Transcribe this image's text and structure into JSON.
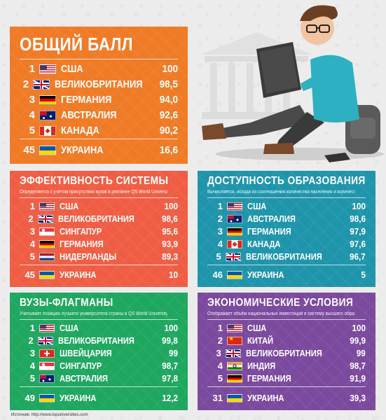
{
  "colors": {
    "orange": "#f07b26",
    "red": "#ef5e44",
    "teal": "#1f95ac",
    "green": "#1fa760",
    "purple": "#7b4a9e",
    "background": "#ececec"
  },
  "panels": {
    "overall": {
      "title": "ОБЩИЙ БАЛЛ",
      "rows": [
        {
          "rank": "1",
          "flag": "us",
          "country": "США",
          "score": "100"
        },
        {
          "rank": "2",
          "flag": "uk",
          "country": "ВЕЛИКОБРИТАНИЯ",
          "score": "98,5"
        },
        {
          "rank": "3",
          "flag": "de",
          "country": "ГЕРМАНИЯ",
          "score": "94,0"
        },
        {
          "rank": "4",
          "flag": "au",
          "country": "АВСТРАЛИЯ",
          "score": "92,6"
        },
        {
          "rank": "5",
          "flag": "ca",
          "country": "КАНАДА",
          "score": "90,2"
        },
        {
          "rank": "45",
          "flag": "ua",
          "country": "УКРАИНА",
          "score": "16,6"
        }
      ]
    },
    "efficiency": {
      "title": "ЭФФЕКТИВНОСТЬ СИСТЕМЫ",
      "subtitle": "Определяется с учётом присутствия вузов в рейтинге QS World University Rankings",
      "rows": [
        {
          "rank": "1",
          "flag": "us",
          "country": "США",
          "score": "100"
        },
        {
          "rank": "2",
          "flag": "uk",
          "country": "ВЕЛИКОБРИТАНИЯ",
          "score": "98,6"
        },
        {
          "rank": "3",
          "flag": "sg",
          "country": "СИНГАПУР",
          "score": "95,6"
        },
        {
          "rank": "4",
          "flag": "de",
          "country": "ГЕРМАНИЯ",
          "score": "93,9"
        },
        {
          "rank": "5",
          "flag": "nl",
          "country": "НИДЕРЛАНДЫ",
          "score": "89,3"
        },
        {
          "rank": "45",
          "flag": "ua",
          "country": "УКРАИНА",
          "score": "10"
        }
      ]
    },
    "access": {
      "title": "ДОСТУПНОСТЬ ОБРАЗОВАНИЯ",
      "subtitle": "Вычисляется, исходя из соотношения количества населения и количества мест в вузах",
      "rows": [
        {
          "rank": "1",
          "flag": "us",
          "country": "США",
          "score": "100"
        },
        {
          "rank": "2",
          "flag": "au",
          "country": "АВСТРАЛИЯ",
          "score": "98,6"
        },
        {
          "rank": "3",
          "flag": "de",
          "country": "ГЕРМАНИЯ",
          "score": "97,9"
        },
        {
          "rank": "4",
          "flag": "ca",
          "country": "КАНАДА",
          "score": "97,6"
        },
        {
          "rank": "5",
          "flag": "uk",
          "country": "ВЕЛИКОБРИТАНИЯ",
          "score": "96,7"
        },
        {
          "rank": "46",
          "flag": "ua",
          "country": "УКРАИНА",
          "score": "5"
        }
      ]
    },
    "flagships": {
      "title": "ВУЗЫ-ФЛАГМАНЫ",
      "subtitle": "Учитывает позицию лучшего университета страны в QS World University Rankings",
      "rows": [
        {
          "rank": "1",
          "flag": "us",
          "country": "США",
          "score": "100"
        },
        {
          "rank": "2",
          "flag": "uk",
          "country": "ВЕЛИКОБРИТАНИЯ",
          "score": "99,8"
        },
        {
          "rank": "3",
          "flag": "ch",
          "country": "ШВЕЙЦАРИЯ",
          "score": "99"
        },
        {
          "rank": "4",
          "flag": "sg",
          "country": "СИНГАПУР",
          "score": "98,7"
        },
        {
          "rank": "5",
          "flag": "au",
          "country": "АВСТРАЛИЯ",
          "score": "97,8"
        },
        {
          "rank": "49",
          "flag": "ua",
          "country": "УКРАИНА",
          "score": "12,2"
        }
      ]
    },
    "economy": {
      "title": "ЭКОНОМИЧЕСКИЕ УСЛОВИЯ",
      "subtitle": "Отображает объём национальных инвестиций в систему высшего образования страны",
      "rows": [
        {
          "rank": "1",
          "flag": "us",
          "country": "США",
          "score": "100"
        },
        {
          "rank": "2",
          "flag": "cn",
          "country": "КИТАЙ",
          "score": "99,9"
        },
        {
          "rank": "3",
          "flag": "uk",
          "country": "ВЕЛИКОБРИТАНИЯ",
          "score": "99"
        },
        {
          "rank": "4",
          "flag": "in",
          "country": "ИНДИЯ",
          "score": "98,7"
        },
        {
          "rank": "5",
          "flag": "de",
          "country": "ГЕРМАНИЯ",
          "score": "91,9"
        },
        {
          "rank": "31",
          "flag": "ua",
          "country": "УКРАИНА",
          "score": "39,3"
        }
      ]
    }
  },
  "source": "Источник: http://www.topuniversities.com"
}
